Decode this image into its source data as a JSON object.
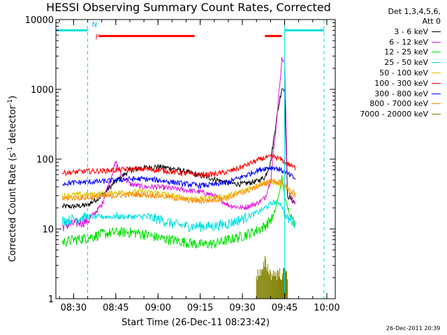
{
  "chart_data": {
    "type": "line",
    "title": "HESSI Observing Summary Count Rates, Corrected",
    "xlabel": "Start Time (26-Dec-11 08:23:42)",
    "ylabel_prefix": "Corrected Count Rate (s",
    "ylabel_sup1": "-1",
    "ylabel_mid": " detector",
    "ylabel_sup2": "-1",
    "ylabel_suffix": ")",
    "y_scale": "log",
    "ylim": [
      1,
      10000
    ],
    "xlim": [
      "08:23:42",
      "10:03"
    ],
    "x_ticks": [
      "08:30",
      "08:45",
      "09:00",
      "09:15",
      "09:30",
      "09:45",
      "10:00"
    ],
    "y_ticks": [
      "1",
      "10",
      "100",
      "1000",
      "10000"
    ],
    "legend_header": [
      "Det 1,3,4,5,6,",
      "Att 0"
    ],
    "legend_position": "top-right, outside plot",
    "grid": false,
    "series": [
      {
        "name": "3 - 6 keV",
        "color": "#000000",
        "points": [
          [
            "08:26",
            21
          ],
          [
            "08:30",
            21
          ],
          [
            "08:35",
            22
          ],
          [
            "08:40",
            30
          ],
          [
            "08:45",
            48
          ],
          [
            "08:50",
            70
          ],
          [
            "08:55",
            75
          ],
          [
            "09:00",
            78
          ],
          [
            "09:05",
            74
          ],
          [
            "09:10",
            66
          ],
          [
            "09:15",
            58
          ],
          [
            "09:20",
            52
          ],
          [
            "09:25",
            45
          ],
          [
            "09:30",
            44
          ],
          [
            "09:35",
            48
          ],
          [
            "09:38",
            55
          ],
          [
            "09:40",
            90
          ],
          [
            "09:42",
            350
          ],
          [
            "09:44",
            1050
          ],
          [
            "09:45",
            1000
          ],
          [
            "09:46",
            30
          ],
          [
            "09:48",
            25
          ],
          [
            "09:49",
            24
          ]
        ]
      },
      {
        "name": "6 - 12 keV",
        "color": "#e010e0",
        "points": [
          [
            "08:26",
            11
          ],
          [
            "08:30",
            12
          ],
          [
            "08:35",
            13
          ],
          [
            "08:40",
            22
          ],
          [
            "08:45",
            90
          ],
          [
            "08:47",
            60
          ],
          [
            "08:50",
            44
          ],
          [
            "08:55",
            40
          ],
          [
            "09:00",
            40
          ],
          [
            "09:05",
            38
          ],
          [
            "09:10",
            36
          ],
          [
            "09:15",
            34
          ],
          [
            "09:20",
            30
          ],
          [
            "09:25",
            22
          ],
          [
            "09:30",
            20
          ],
          [
            "09:35",
            23
          ],
          [
            "09:38",
            28
          ],
          [
            "09:40",
            50
          ],
          [
            "09:42",
            300
          ],
          [
            "09:44",
            2700
          ],
          [
            "09:45",
            2500
          ],
          [
            "09:46",
            40
          ],
          [
            "09:48",
            25
          ],
          [
            "09:49",
            23
          ]
        ]
      },
      {
        "name": "12 - 25 keV",
        "color": "#00e000",
        "points": [
          [
            "08:26",
            6.5
          ],
          [
            "08:30",
            7
          ],
          [
            "08:35",
            7.5
          ],
          [
            "08:40",
            8.5
          ],
          [
            "08:45",
            9
          ],
          [
            "08:50",
            9
          ],
          [
            "08:55",
            8.5
          ],
          [
            "09:00",
            7.5
          ],
          [
            "09:05",
            7
          ],
          [
            "09:10",
            6.5
          ],
          [
            "09:15",
            6
          ],
          [
            "09:20",
            6.2
          ],
          [
            "09:25",
            7
          ],
          [
            "09:30",
            8
          ],
          [
            "09:35",
            9.5
          ],
          [
            "09:38",
            11
          ],
          [
            "09:41",
            15
          ],
          [
            "09:43",
            30
          ],
          [
            "09:44",
            55
          ],
          [
            "09:45",
            30
          ],
          [
            "09:46",
            20
          ],
          [
            "09:48",
            14
          ],
          [
            "09:49",
            11
          ]
        ]
      },
      {
        "name": "25 - 50 keV",
        "color": "#00e0e0",
        "points": [
          [
            "08:26",
            13
          ],
          [
            "08:30",
            14
          ],
          [
            "08:35",
            15
          ],
          [
            "08:40",
            15
          ],
          [
            "08:45",
            15
          ],
          [
            "08:50",
            15
          ],
          [
            "08:55",
            15
          ],
          [
            "09:00",
            14
          ],
          [
            "09:05",
            12
          ],
          [
            "09:10",
            11
          ],
          [
            "09:15",
            11
          ],
          [
            "09:20",
            11
          ],
          [
            "09:25",
            12
          ],
          [
            "09:30",
            14
          ],
          [
            "09:35",
            17
          ],
          [
            "09:38",
            20
          ],
          [
            "09:41",
            24
          ],
          [
            "09:43",
            24
          ],
          [
            "09:44",
            22
          ],
          [
            "09:45",
            16
          ],
          [
            "09:46",
            14
          ],
          [
            "09:48",
            13
          ],
          [
            "09:49",
            12
          ]
        ]
      },
      {
        "name": "50 - 100 keV",
        "color": "#e0c000",
        "points": [
          [
            "08:26",
            30
          ],
          [
            "08:30",
            31
          ],
          [
            "08:35",
            31
          ],
          [
            "08:40",
            32
          ],
          [
            "08:45",
            33
          ],
          [
            "08:50",
            34
          ],
          [
            "08:55",
            34
          ],
          [
            "09:00",
            33
          ],
          [
            "09:05",
            30
          ],
          [
            "09:10",
            28
          ],
          [
            "09:15",
            27
          ],
          [
            "09:20",
            28
          ],
          [
            "09:25",
            30
          ],
          [
            "09:30",
            35
          ],
          [
            "09:35",
            42
          ],
          [
            "09:38",
            46
          ],
          [
            "09:41",
            47
          ],
          [
            "09:43",
            44
          ],
          [
            "09:45",
            39
          ],
          [
            "09:47",
            34
          ],
          [
            "09:49",
            30
          ]
        ]
      },
      {
        "name": "100 - 300 keV",
        "color": "#ff0000",
        "points": [
          [
            "08:26",
            64
          ],
          [
            "08:30",
            65
          ],
          [
            "08:35",
            67
          ],
          [
            "08:40",
            68
          ],
          [
            "08:45",
            70
          ],
          [
            "08:50",
            72
          ],
          [
            "08:55",
            72
          ],
          [
            "09:00",
            70
          ],
          [
            "09:05",
            66
          ],
          [
            "09:10",
            62
          ],
          [
            "09:15",
            60
          ],
          [
            "09:20",
            61
          ],
          [
            "09:25",
            66
          ],
          [
            "09:30",
            78
          ],
          [
            "09:35",
            95
          ],
          [
            "09:38",
            105
          ],
          [
            "09:41",
            108
          ],
          [
            "09:43",
            102
          ],
          [
            "09:45",
            92
          ],
          [
            "09:47",
            82
          ],
          [
            "09:49",
            74
          ]
        ]
      },
      {
        "name": "300 - 800 keV",
        "color": "#0000ff",
        "points": [
          [
            "08:26",
            45
          ],
          [
            "08:30",
            46
          ],
          [
            "08:35",
            47
          ],
          [
            "08:40",
            48
          ],
          [
            "08:45",
            50
          ],
          [
            "08:50",
            52
          ],
          [
            "08:55",
            52
          ],
          [
            "09:00",
            50
          ],
          [
            "09:05",
            47
          ],
          [
            "09:10",
            44
          ],
          [
            "09:15",
            42
          ],
          [
            "09:20",
            43
          ],
          [
            "09:25",
            47
          ],
          [
            "09:30",
            56
          ],
          [
            "09:35",
            68
          ],
          [
            "09:38",
            74
          ],
          [
            "09:41",
            76
          ],
          [
            "09:43",
            72
          ],
          [
            "09:45",
            66
          ],
          [
            "09:47",
            58
          ],
          [
            "09:49",
            52
          ]
        ]
      },
      {
        "name": "800 - 7000 keV",
        "color": "#ff8c00",
        "points": [
          [
            "08:26",
            27
          ],
          [
            "08:30",
            28
          ],
          [
            "08:35",
            28
          ],
          [
            "08:40",
            29
          ],
          [
            "08:45",
            30
          ],
          [
            "08:50",
            31
          ],
          [
            "08:55",
            31
          ],
          [
            "09:00",
            30
          ],
          [
            "09:05",
            28
          ],
          [
            "09:10",
            26
          ],
          [
            "09:15",
            25
          ],
          [
            "09:20",
            26
          ],
          [
            "09:25",
            28
          ],
          [
            "09:30",
            33
          ],
          [
            "09:35",
            40
          ],
          [
            "09:38",
            45
          ],
          [
            "09:41",
            50
          ],
          [
            "09:43",
            47
          ],
          [
            "09:45",
            42
          ],
          [
            "09:47",
            36
          ],
          [
            "09:49",
            32
          ]
        ]
      },
      {
        "name": "7000 - 20000 keV",
        "color": "#808000",
        "points": [
          [
            "09:35",
            2
          ],
          [
            "09:37",
            2
          ],
          [
            "09:38",
            3
          ],
          [
            "09:40",
            2
          ],
          [
            "09:42",
            2
          ],
          [
            "09:44",
            2
          ],
          [
            "09:46",
            2
          ]
        ]
      }
    ],
    "flags": {
      "saa_color": "#00e0e0",
      "flare_color": "#ff0000",
      "night_label": "N",
      "flare_label": "F",
      "saa_bars": [
        [
          "08:23:42",
          "08:35"
        ],
        [
          "09:45",
          "09:59"
        ]
      ],
      "flare_bars": [
        [
          "08:39",
          "09:13"
        ],
        [
          "09:38",
          "09:44"
        ]
      ],
      "vertical_markers": [
        [
          "08:23:42",
          "solid"
        ],
        [
          "08:35",
          "dashed"
        ],
        [
          "09:45",
          "solid"
        ],
        [
          "09:59",
          "dashed"
        ]
      ]
    }
  },
  "footer": {
    "timestamp": "26-Dec-2011 20:39"
  }
}
